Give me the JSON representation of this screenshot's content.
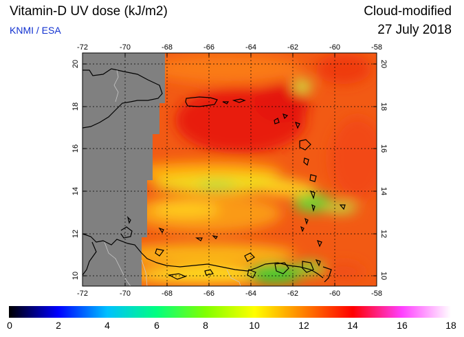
{
  "header": {
    "title": "Vitamin-D UV dose (kJ/m2)",
    "credit": "KNMI / ESA",
    "mode": "Cloud-modified",
    "date": "27 July 2018"
  },
  "map": {
    "lon_range": [
      -72,
      -58
    ],
    "lat_range": [
      9.5,
      20.5
    ],
    "lon_ticks": [
      "-72",
      "-70",
      "-68",
      "-66",
      "-64",
      "-62",
      "-60",
      "-58"
    ],
    "lat_ticks": [
      "10",
      "12",
      "14",
      "16",
      "18",
      "20"
    ],
    "no_data_color": "#808080",
    "grid": "dotted"
  },
  "colorbar": {
    "min": 0,
    "max": 18,
    "labels": [
      "0",
      "2",
      "4",
      "6",
      "8",
      "10",
      "12",
      "14",
      "16",
      "18"
    ],
    "colors": [
      "#000000",
      "#0000ff",
      "#00c0ff",
      "#00ff80",
      "#80ff00",
      "#ffff00",
      "#ff8000",
      "#ff0000",
      "#ff40ff",
      "#ffffff"
    ]
  }
}
